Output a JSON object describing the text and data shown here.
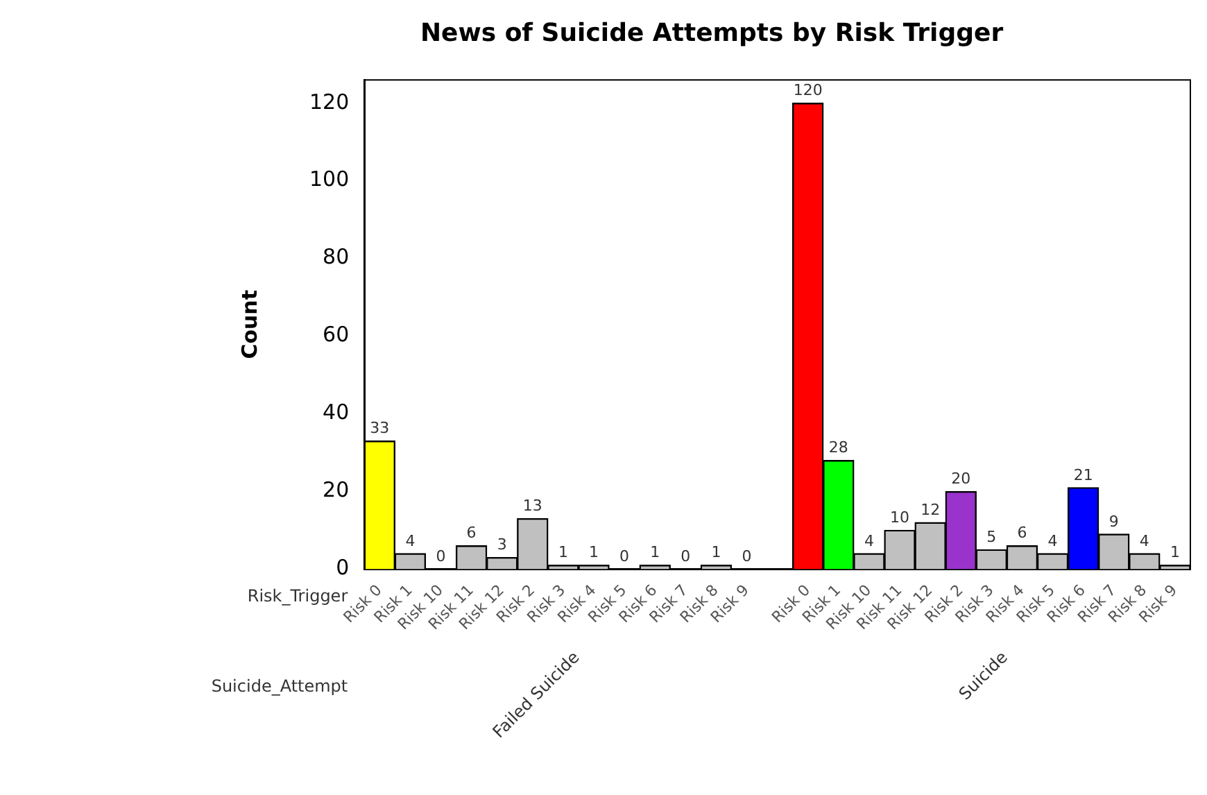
{
  "chart_data": {
    "type": "bar",
    "title": "News of Suicide Attempts by Risk Trigger",
    "ylabel": "Count",
    "xlabel": "Risk_Trigger",
    "annotations": [
      "Suicide_Attempt",
      "Failed Suicide",
      "Suicide"
    ],
    "categories": [
      "Risk 0",
      "Risk 1",
      "Risk 10",
      "Risk 11",
      "Risk 12",
      "Risk 2",
      "Risk 3",
      "Risk 4",
      "Risk 5",
      "Risk 6",
      "Risk 7",
      "Risk 8",
      "Risk 9",
      null,
      "Risk 0",
      "Risk 1",
      "Risk 10",
      "Risk 11",
      "Risk 12",
      "Risk 2",
      "Risk 3",
      "Risk 4",
      "Risk 5",
      "Risk 6",
      "Risk 7",
      "Risk 8",
      "Risk 9"
    ],
    "values": [
      33,
      4,
      0,
      6,
      3,
      13,
      1,
      1,
      0,
      1,
      0,
      1,
      0,
      null,
      120,
      28,
      4,
      10,
      12,
      20,
      5,
      6,
      4,
      21,
      9,
      4,
      1
    ],
    "colors": [
      "#ffff00",
      "#c0c0c0",
      "#c0c0c0",
      "#c0c0c0",
      "#c0c0c0",
      "#c0c0c0",
      "#c0c0c0",
      "#c0c0c0",
      "#c0c0c0",
      "#c0c0c0",
      "#c0c0c0",
      "#c0c0c0",
      "#c0c0c0",
      "#c0c0c0",
      "#ff0000",
      "#00ff00",
      "#c0c0c0",
      "#c0c0c0",
      "#c0c0c0",
      "#9933cc",
      "#c0c0c0",
      "#c0c0c0",
      "#c0c0c0",
      "#0000ff",
      "#c0c0c0",
      "#c0c0c0",
      "#c0c0c0"
    ],
    "ylim": [
      0,
      126
    ],
    "yticks": [
      0,
      20,
      40,
      60,
      80,
      100,
      120
    ],
    "data_labels": true,
    "grid": false,
    "legend": false
  }
}
